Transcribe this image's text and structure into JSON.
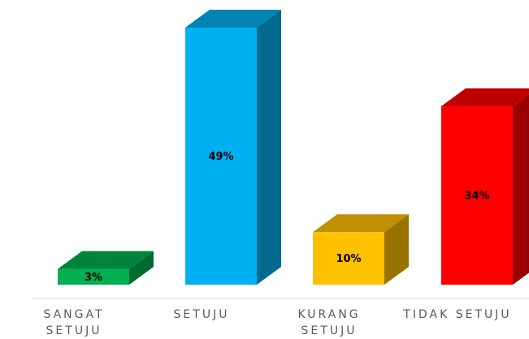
{
  "chart_data": {
    "type": "bar3d",
    "categories": [
      "SANGAT SETUJU",
      "SETUJU",
      "KURANG SETUJU",
      "TIDAK SETUJU"
    ],
    "values": [
      3,
      49,
      10,
      34
    ],
    "value_labels": [
      "3%",
      "49%",
      "10%",
      "34%"
    ],
    "colors": [
      "#00b050",
      "#00b0f0",
      "#ffc000",
      "#ff0000"
    ]
  }
}
